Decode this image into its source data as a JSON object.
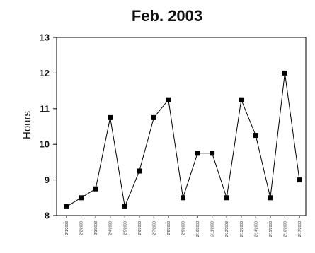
{
  "chart_data": {
    "type": "line",
    "title": "Feb. 2003",
    "xlabel": "",
    "ylabel": "Hours",
    "ylim": [
      8,
      13
    ],
    "yticks": [
      8,
      9,
      10,
      11,
      12,
      13
    ],
    "grid": false,
    "categories": [
      "2/1/2003",
      "2/2/2003",
      "2/3/2003",
      "2/4/2003",
      "2/5/2003",
      "2/6/2003",
      "2/7/2003",
      "2/8/2003",
      "2/9/2003",
      "2/10/2003",
      "2/11/2003",
      "2/12/2003",
      "2/13/2003",
      "2/14/2003",
      "2/15/2003",
      "2/16/2003",
      "2/17/2003"
    ],
    "series": [
      {
        "values": [
          8.25,
          8.5,
          8.75,
          10.75,
          8.25,
          9.25,
          10.75,
          11.25,
          8.5,
          9.75,
          9.75,
          8.5,
          11.25,
          10.25,
          8.5,
          12.0,
          9.0
        ]
      }
    ],
    "colors": {
      "line": "#000000",
      "marker": "#000000",
      "axis": "#000000"
    }
  }
}
